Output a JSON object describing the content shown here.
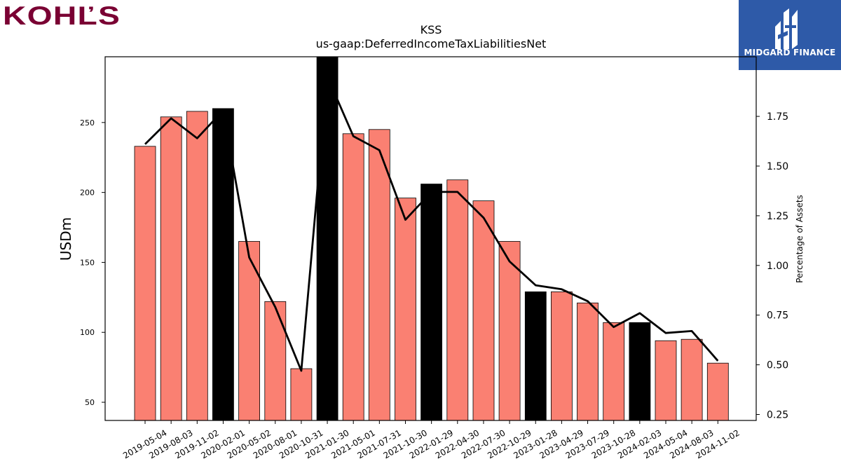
{
  "logos": {
    "company": "KOHĽS",
    "brand": "MIDGARD FINANCE"
  },
  "colors": {
    "bar_default": "#fa8072",
    "bar_highlight": "#000000",
    "line": "#000000",
    "brand_blue": "#2e5aa8",
    "company_red": "#7a0033"
  },
  "chart_data": {
    "type": "bar",
    "title": "KSS",
    "subtitle": "us-gaap:DeferredIncomeTaxLiabilitiesNet",
    "ylabel": "USDm",
    "y2label": "Percentage of Assets",
    "ylim": [
      37,
      297
    ],
    "y2lim": [
      0.22,
      2.05
    ],
    "yticks": [
      50,
      100,
      150,
      200,
      250
    ],
    "y2ticks": [
      "0.25",
      "0.50",
      "0.75",
      "1.00",
      "1.25",
      "1.50",
      "1.75"
    ],
    "categories": [
      "2019-05-04",
      "2019-08-03",
      "2019-11-02",
      "2020-02-01",
      "2020-05-02",
      "2020-08-01",
      "2020-10-31",
      "2021-01-30",
      "2021-05-01",
      "2021-07-31",
      "2021-10-30",
      "2022-01-29",
      "2022-04-30",
      "2022-07-30",
      "2022-10-29",
      "2023-01-28",
      "2023-04-29",
      "2023-07-29",
      "2023-10-28",
      "2024-02-03",
      "2024-05-04",
      "2024-08-03",
      "2024-11-02"
    ],
    "series": [
      {
        "values": [
          233,
          254,
          258,
          260,
          165,
          122,
          74,
          297,
          242,
          245,
          196,
          206,
          209,
          194,
          165,
          129,
          129,
          121,
          107,
          107,
          94,
          95,
          78
        ],
        "highlight": [
          false,
          false,
          false,
          true,
          false,
          false,
          false,
          true,
          false,
          false,
          false,
          true,
          false,
          false,
          false,
          true,
          false,
          false,
          false,
          true,
          false,
          false,
          false
        ]
      },
      {
        "axis": "right",
        "values": [
          1.61,
          1.74,
          1.64,
          1.78,
          1.04,
          0.79,
          0.47,
          1.95,
          1.65,
          1.58,
          1.23,
          1.37,
          1.37,
          1.24,
          1.02,
          0.9,
          0.88,
          0.82,
          0.69,
          0.76,
          0.66,
          0.67,
          0.52
        ]
      }
    ],
    "grid": false,
    "legend": "none"
  }
}
